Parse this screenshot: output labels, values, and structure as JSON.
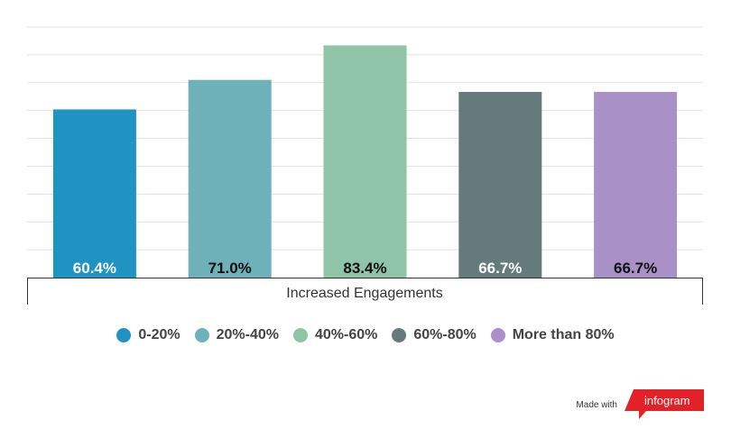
{
  "chart_data": {
    "type": "bar",
    "categories": [
      "0-20%",
      "20%-40%",
      "40%-60%",
      "60%-80%",
      "More than 80%"
    ],
    "values": [
      60.4,
      71.0,
      83.4,
      66.7,
      66.7
    ],
    "value_labels": [
      "60.4%",
      "71.0%",
      "83.4%",
      "66.7%",
      "66.7%"
    ],
    "xlabel": "Increased Engagements",
    "ylim": [
      0,
      90
    ],
    "grid": true,
    "legend_position": "bottom",
    "colors": [
      "#1f93c2",
      "#6fb1b9",
      "#8fc4a8",
      "#647a7b",
      "#a991c8"
    ],
    "label_colors": [
      "#ffffff",
      "#111111",
      "#111111",
      "#ffffff",
      "#111111"
    ]
  },
  "footer": {
    "made_with": "Made with",
    "brand": "infogram",
    "brand_color": "#e32227"
  }
}
